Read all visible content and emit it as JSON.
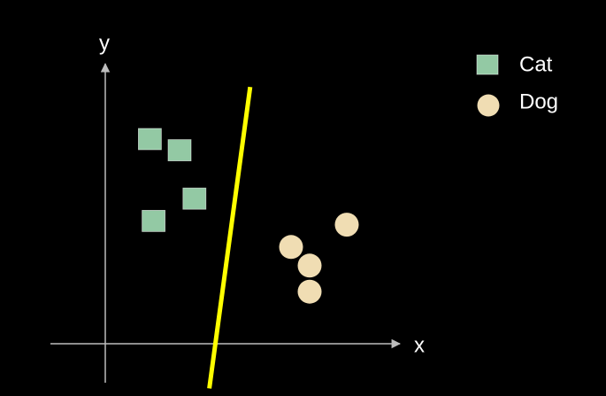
{
  "chart_data": {
    "type": "scatter",
    "xlabel": "x",
    "ylabel": "y",
    "series": [
      {
        "name": "Cat",
        "shape": "square",
        "color": "#93c9a4",
        "points": [
          [
            1.2,
            5.5
          ],
          [
            2.0,
            5.2
          ],
          [
            2.4,
            3.9
          ],
          [
            1.3,
            3.3
          ]
        ]
      },
      {
        "name": "Dog",
        "shape": "circle",
        "color": "#f0ddb3",
        "points": [
          [
            6.5,
            3.2
          ],
          [
            5.0,
            2.6
          ],
          [
            5.5,
            2.1
          ],
          [
            5.5,
            1.4
          ]
        ]
      }
    ],
    "decision_boundary": {
      "color": "#ffff00",
      "points": [
        [
          3.9,
          6.9
        ],
        [
          2.8,
          -1.2
        ]
      ]
    },
    "legend": {
      "placement": "top-right"
    },
    "grid": false
  }
}
